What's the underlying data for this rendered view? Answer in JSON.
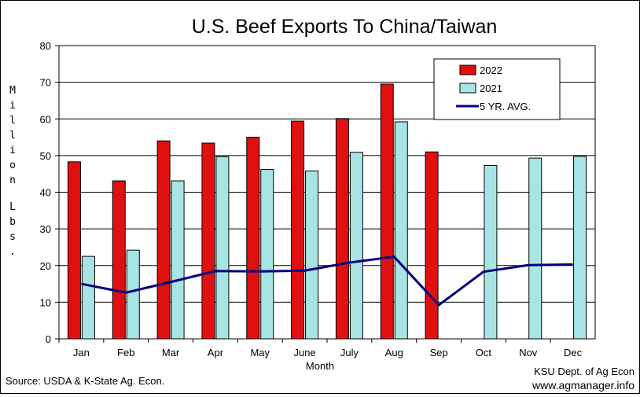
{
  "chart_data": {
    "type": "bar",
    "title": "U.S. Beef Exports To China/Taiwan",
    "xlabel": "Month",
    "ylabel": "Million Lbs.",
    "ylim": [
      0,
      80
    ],
    "yticks": [
      0,
      10,
      20,
      30,
      40,
      50,
      60,
      70,
      80
    ],
    "categories": [
      "Jan",
      "Feb",
      "Mar",
      "Apr",
      "May",
      "June",
      "July",
      "Aug",
      "Sep",
      "Oct",
      "Nov",
      "Dec"
    ],
    "series": [
      {
        "name": "2022",
        "kind": "bar",
        "color": "#e01010",
        "values": [
          48.3,
          43.1,
          54.0,
          53.4,
          55.0,
          59.4,
          60.1,
          69.5,
          51.0,
          null,
          null,
          null
        ]
      },
      {
        "name": "2021",
        "kind": "bar",
        "color": "#a8e4e4",
        "values": [
          22.5,
          24.2,
          43.1,
          49.7,
          46.2,
          45.8,
          50.9,
          59.2,
          null,
          47.3,
          49.3,
          49.8
        ]
      },
      {
        "name": "5 YR. AVG.",
        "kind": "line",
        "color": "#00007f",
        "values": [
          15.0,
          12.6,
          15.5,
          18.5,
          18.4,
          18.6,
          20.8,
          22.4,
          9.2,
          18.3,
          20.1,
          20.3
        ]
      }
    ],
    "grid": true,
    "legend_position": "top-right"
  },
  "footer": {
    "source": "Source:  USDA & K-State Ag. Econ.",
    "credit_line1": "KSU Dept. of Ag Econ",
    "credit_line2": "www.agmanager.info"
  }
}
